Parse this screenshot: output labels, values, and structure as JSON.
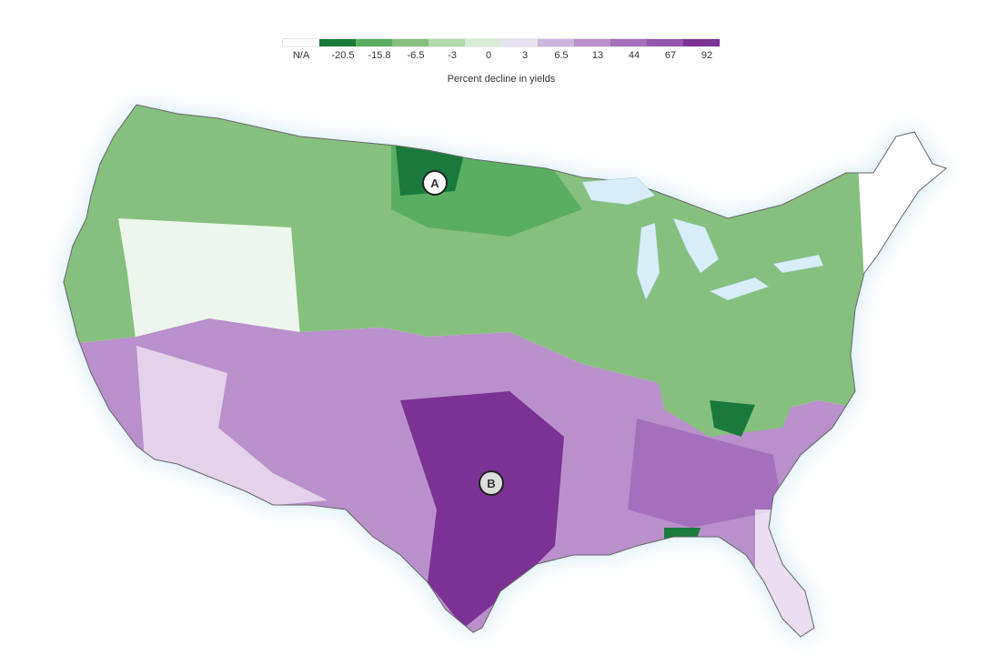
{
  "legend": {
    "title": "Percent decline in yields",
    "items": [
      {
        "label": "N/A",
        "color": "#ffffff"
      },
      {
        "label": "-20.5",
        "color": "#1a7a3c"
      },
      {
        "label": "-15.8",
        "color": "#5aae61"
      },
      {
        "label": "-6.5",
        "color": "#86c07e"
      },
      {
        "label": "-3",
        "color": "#b3d9ad"
      },
      {
        "label": "0",
        "color": "#d9ecd7"
      },
      {
        "label": "3",
        "color": "#e7e3f0"
      },
      {
        "label": "6.5",
        "color": "#cdb6dc"
      },
      {
        "label": "13",
        "color": "#b990cb"
      },
      {
        "label": "44",
        "color": "#a46fbc"
      },
      {
        "label": "67",
        "color": "#9356ad"
      },
      {
        "label": "92",
        "color": "#7b3294"
      }
    ]
  },
  "markers": [
    {
      "label": "A"
    },
    {
      "label": "B"
    }
  ]
}
